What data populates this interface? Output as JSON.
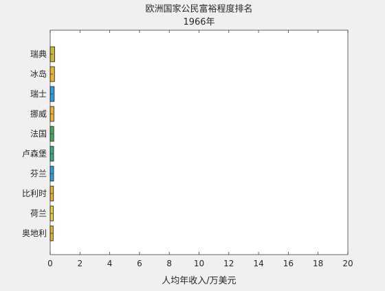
{
  "colors": {
    "figure_bg": "#f0f0f0",
    "axes_bg": "#ffffff",
    "axis_line": "#262626",
    "bar_edge": "#1a1a1a"
  },
  "chart_data": {
    "type": "bar",
    "orientation": "horizontal",
    "title": "欧洲国家公民富裕程度排名",
    "subtitle": "1966年",
    "xlabel": "人均年收入/万美元",
    "ylabel": "",
    "xlim": [
      0,
      20
    ],
    "xticks": [
      "0",
      "2",
      "4",
      "6",
      "8",
      "10",
      "12",
      "14",
      "16",
      "18",
      "20"
    ],
    "grid": false,
    "categories": [
      "瑞典",
      "冰岛",
      "瑞士",
      "挪威",
      "法国",
      "卢森堡",
      "芬兰",
      "比利时",
      "荷兰",
      "奥地利"
    ],
    "values": [
      0.3,
      0.29,
      0.27,
      0.25,
      0.24,
      0.23,
      0.23,
      0.22,
      0.21,
      0.2
    ],
    "bar_colors": [
      "#c5b83a",
      "#e8b330",
      "#2f9fd6",
      "#e8b330",
      "#48a85a",
      "#3ea989",
      "#2f9fd6",
      "#e8b330",
      "#e6d23a",
      "#e8b330"
    ]
  }
}
